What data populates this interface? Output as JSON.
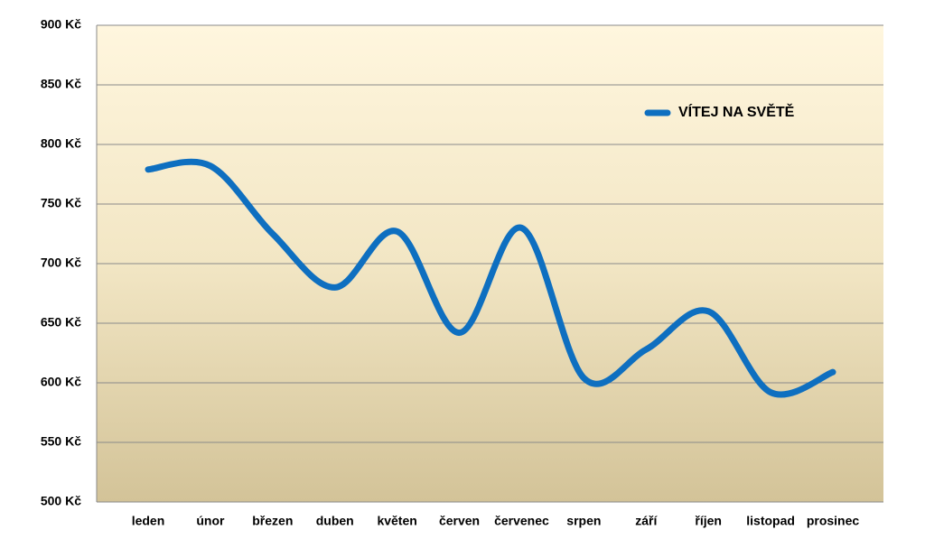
{
  "chart_data": {
    "type": "line",
    "categories": [
      "leden",
      "únor",
      "březen",
      "duben",
      "květen",
      "červen",
      "červenec",
      "srpen",
      "září",
      "říjen",
      "listopad",
      "prosinec"
    ],
    "series": [
      {
        "name": "VÍTEJ NA SVĚTĚ",
        "color": "#0e6fc0",
        "values": [
          779,
          782,
          725,
          680,
          727,
          642,
          730,
          604,
          628,
          660,
          592,
          609
        ]
      }
    ],
    "ylim": [
      500,
      900
    ],
    "yticks": [
      {
        "value": 500,
        "label": "500 Kč"
      },
      {
        "value": 550,
        "label": "550 Kč"
      },
      {
        "value": 600,
        "label": "600 Kč"
      },
      {
        "value": 650,
        "label": "650 Kč"
      },
      {
        "value": 700,
        "label": "700 Kč"
      },
      {
        "value": 750,
        "label": "750 Kč"
      },
      {
        "value": 800,
        "label": "800 Kč"
      },
      {
        "value": 850,
        "label": "850 Kč"
      },
      {
        "value": 900,
        "label": "900 Kč"
      }
    ],
    "grid": true,
    "legend": "upper right"
  }
}
